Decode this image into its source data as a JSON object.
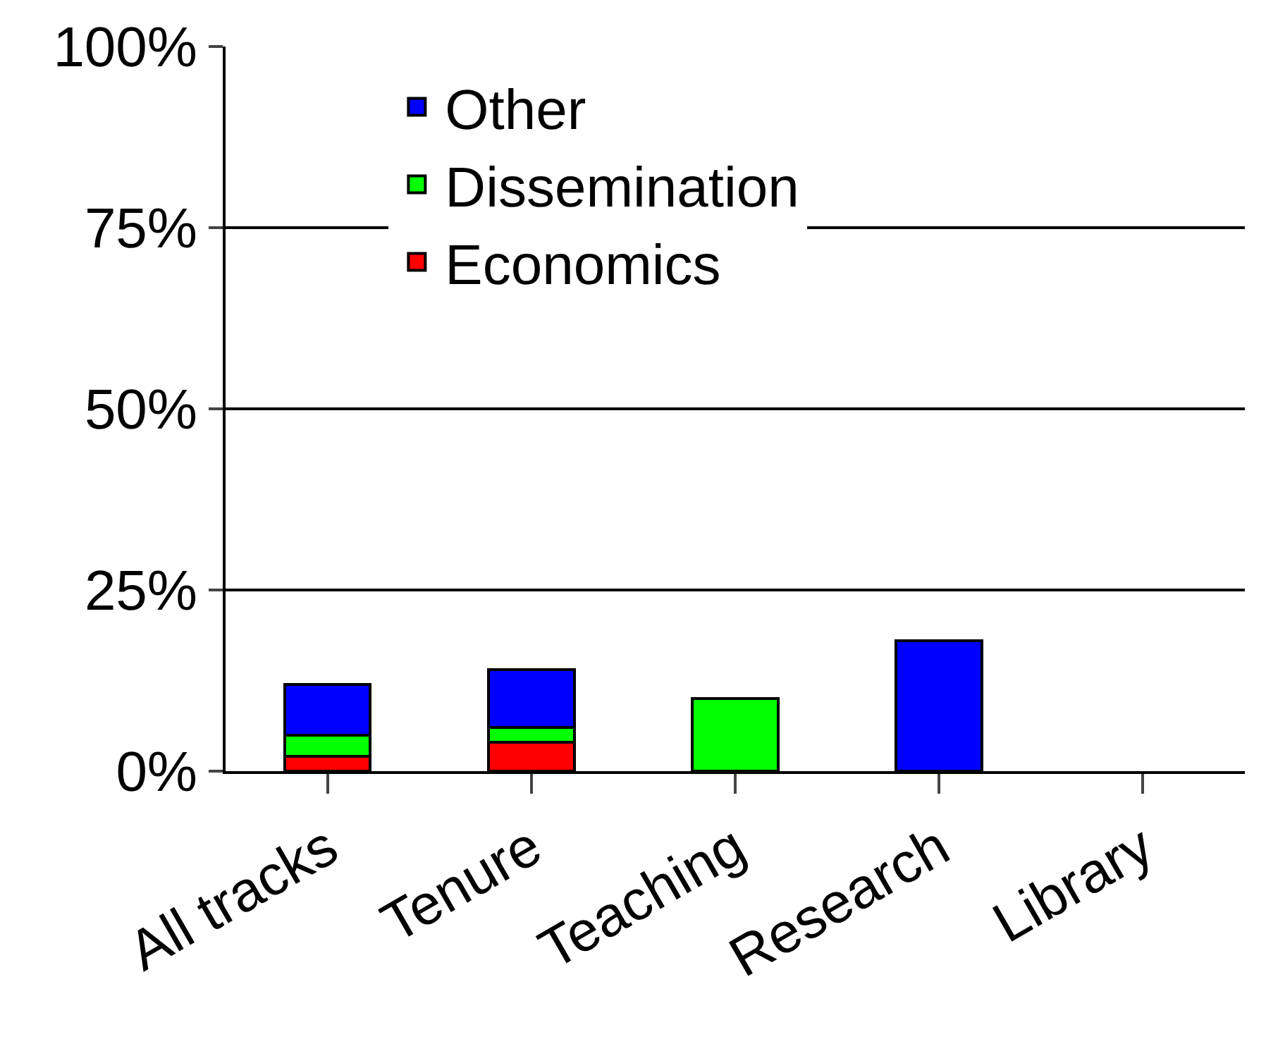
{
  "chart_data": {
    "type": "bar",
    "stacked": true,
    "categories": [
      "All tracks",
      "Tenure",
      "Teaching",
      "Research",
      "Library"
    ],
    "series": [
      {
        "name": "Economics",
        "color": "#ff0000",
        "values": [
          2,
          4,
          null,
          null,
          null
        ]
      },
      {
        "name": "Dissemination",
        "color": "#00ff00",
        "values": [
          3,
          2,
          10,
          null,
          null
        ]
      },
      {
        "name": "Other",
        "color": "#0000ff",
        "values": [
          7,
          8,
          null,
          18,
          null
        ]
      }
    ],
    "ylim": [
      0,
      100
    ],
    "yticks": [
      {
        "value": 0,
        "label": "0%"
      },
      {
        "value": 25,
        "label": "25%"
      },
      {
        "value": 50,
        "label": "50%"
      },
      {
        "value": 75,
        "label": "75%"
      },
      {
        "value": 100,
        "label": "100%"
      }
    ],
    "grid": "y",
    "legend": "top left"
  }
}
